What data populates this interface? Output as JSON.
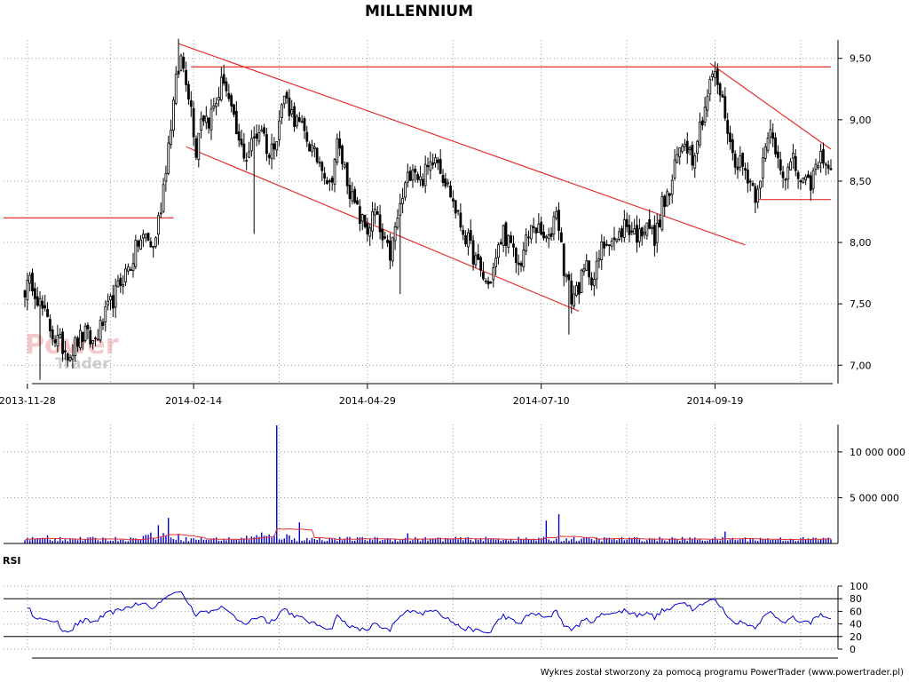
{
  "chart_data": {
    "type": "candlestick",
    "title": "MILLENNIUM",
    "x_tick_labels": [
      "2013-11-28",
      "2014-02-14",
      "2014-04-29",
      "2014-07-10",
      "2014-09-19"
    ],
    "price": {
      "ylim": [
        6.85,
        9.65
      ],
      "y_ticks": [
        7.0,
        7.5,
        8.0,
        8.5,
        9.0,
        9.5
      ],
      "y_tick_labels": [
        "7,00",
        "7,50",
        "8,00",
        "8,50",
        "9,00",
        "9,50"
      ],
      "grid": true,
      "up_color": "#ffffff",
      "down_color": "#000000",
      "close_anchors": [
        [
          0,
          7.62
        ],
        [
          3,
          7.68
        ],
        [
          6,
          7.5
        ],
        [
          9,
          7.35
        ],
        [
          12,
          7.22
        ],
        [
          15,
          7.15
        ],
        [
          18,
          7.1
        ],
        [
          21,
          7.2
        ],
        [
          24,
          7.25
        ],
        [
          27,
          7.18
        ],
        [
          30,
          7.3
        ],
        [
          33,
          7.45
        ],
        [
          36,
          7.58
        ],
        [
          39,
          7.72
        ],
        [
          42,
          7.82
        ],
        [
          45,
          8.0
        ],
        [
          48,
          8.05
        ],
        [
          51,
          7.95
        ],
        [
          54,
          8.3
        ],
        [
          57,
          8.8
        ],
        [
          60,
          9.3
        ],
        [
          62,
          9.5
        ],
        [
          64,
          9.35
        ],
        [
          66,
          9.1
        ],
        [
          68,
          8.75
        ],
        [
          70,
          9.05
        ],
        [
          73,
          9.0
        ],
        [
          76,
          9.15
        ],
        [
          79,
          9.35
        ],
        [
          82,
          9.05
        ],
        [
          85,
          8.8
        ],
        [
          88,
          8.7
        ],
        [
          91,
          8.85
        ],
        [
          94,
          8.95
        ],
        [
          97,
          8.7
        ],
        [
          100,
          8.9
        ],
        [
          103,
          9.2
        ],
        [
          106,
          9.05
        ],
        [
          109,
          8.95
        ],
        [
          112,
          8.85
        ],
        [
          115,
          8.7
        ],
        [
          118,
          8.65
        ],
        [
          121,
          8.45
        ],
        [
          124,
          8.8
        ],
        [
          127,
          8.6
        ],
        [
          130,
          8.35
        ],
        [
          133,
          8.2
        ],
        [
          136,
          8.1
        ],
        [
          139,
          8.25
        ],
        [
          142,
          8.0
        ],
        [
          145,
          7.9
        ],
        [
          148,
          8.2
        ],
        [
          151,
          8.45
        ],
        [
          154,
          8.65
        ],
        [
          157,
          8.5
        ],
        [
          160,
          8.6
        ],
        [
          163,
          8.75
        ],
        [
          166,
          8.55
        ],
        [
          169,
          8.4
        ],
        [
          172,
          8.2
        ],
        [
          175,
          8.05
        ],
        [
          178,
          7.9
        ],
        [
          181,
          7.75
        ],
        [
          184,
          7.65
        ],
        [
          187,
          7.85
        ],
        [
          190,
          8.1
        ],
        [
          193,
          7.95
        ],
        [
          196,
          7.8
        ],
        [
          199,
          8.0
        ],
        [
          202,
          8.15
        ],
        [
          205,
          8.05
        ],
        [
          208,
          8.0
        ],
        [
          211,
          8.3
        ],
        [
          214,
          7.8
        ],
        [
          217,
          7.55
        ],
        [
          220,
          7.65
        ],
        [
          223,
          7.8
        ],
        [
          226,
          7.7
        ],
        [
          229,
          7.95
        ],
        [
          232,
          8.05
        ],
        [
          235,
          8.0
        ],
        [
          238,
          8.15
        ],
        [
          241,
          8.1
        ],
        [
          244,
          8.05
        ],
        [
          247,
          8.2
        ],
        [
          250,
          8.0
        ],
        [
          253,
          8.3
        ],
        [
          256,
          8.4
        ],
        [
          259,
          8.7
        ],
        [
          262,
          8.85
        ],
        [
          265,
          8.7
        ],
        [
          268,
          8.95
        ],
        [
          271,
          9.2
        ],
        [
          273,
          9.38
        ],
        [
          275,
          9.3
        ],
        [
          278,
          9.05
        ],
        [
          281,
          8.7
        ],
        [
          284,
          8.65
        ],
        [
          287,
          8.55
        ],
        [
          290,
          8.4
        ],
        [
          293,
          8.65
        ],
        [
          296,
          8.9
        ],
        [
          299,
          8.7
        ],
        [
          302,
          8.55
        ],
        [
          305,
          8.65
        ],
        [
          308,
          8.5
        ],
        [
          311,
          8.45
        ],
        [
          314,
          8.6
        ],
        [
          317,
          8.72
        ],
        [
          320,
          8.55
        ]
      ],
      "trend_lines": [
        {
          "from": [
            -10,
            8.2
          ],
          "to": [
            59,
            8.2
          ],
          "color": "#e53030"
        },
        {
          "from": [
            66,
            9.43
          ],
          "to": [
            320,
            9.43
          ],
          "color": "#e53030"
        },
        {
          "from": [
            61,
            9.62
          ],
          "to": [
            286,
            7.98
          ],
          "color": "#e53030"
        },
        {
          "from": [
            64,
            8.78
          ],
          "to": [
            220,
            7.44
          ],
          "color": "#e53030"
        },
        {
          "from": [
            272,
            9.46
          ],
          "to": [
            320,
            8.76
          ],
          "color": "#e53030"
        },
        {
          "from": [
            291,
            8.35
          ],
          "to": [
            320,
            8.35
          ],
          "color": "#e53030"
        }
      ]
    },
    "volume": {
      "ylim": [
        0,
        13000000
      ],
      "y_ticks": [
        5000000,
        10000000
      ],
      "y_tick_labels": [
        "5 000 000",
        "10 000 000"
      ],
      "bar_color": "#0000cc",
      "avg_color": "#e53030",
      "spikes": [
        [
          3,
          700000
        ],
        [
          9,
          900000
        ],
        [
          14,
          700000
        ],
        [
          50,
          1200000
        ],
        [
          53,
          2000000
        ],
        [
          57,
          2800000
        ],
        [
          94,
          1200000
        ],
        [
          100,
          12900000
        ],
        [
          109,
          2300000
        ],
        [
          152,
          1100000
        ],
        [
          207,
          2500000
        ],
        [
          212,
          3200000
        ],
        [
          278,
          1300000
        ]
      ],
      "base_level": 500000
    },
    "rsi": {
      "label": "RSI",
      "ylim": [
        0,
        100
      ],
      "y_ticks": [
        0,
        20,
        40,
        60,
        80,
        100
      ],
      "y_tick_labels": [
        "0",
        "20",
        "40",
        "60",
        "80",
        "100"
      ],
      "levels": [
        20,
        80
      ],
      "line_color": "#0000cc"
    }
  },
  "watermark": {
    "line1": "Power",
    "line2": "Trader"
  },
  "footer": "Wykres został stworzony za pomocą programu PowerTrader (www.powertrader.pl)"
}
